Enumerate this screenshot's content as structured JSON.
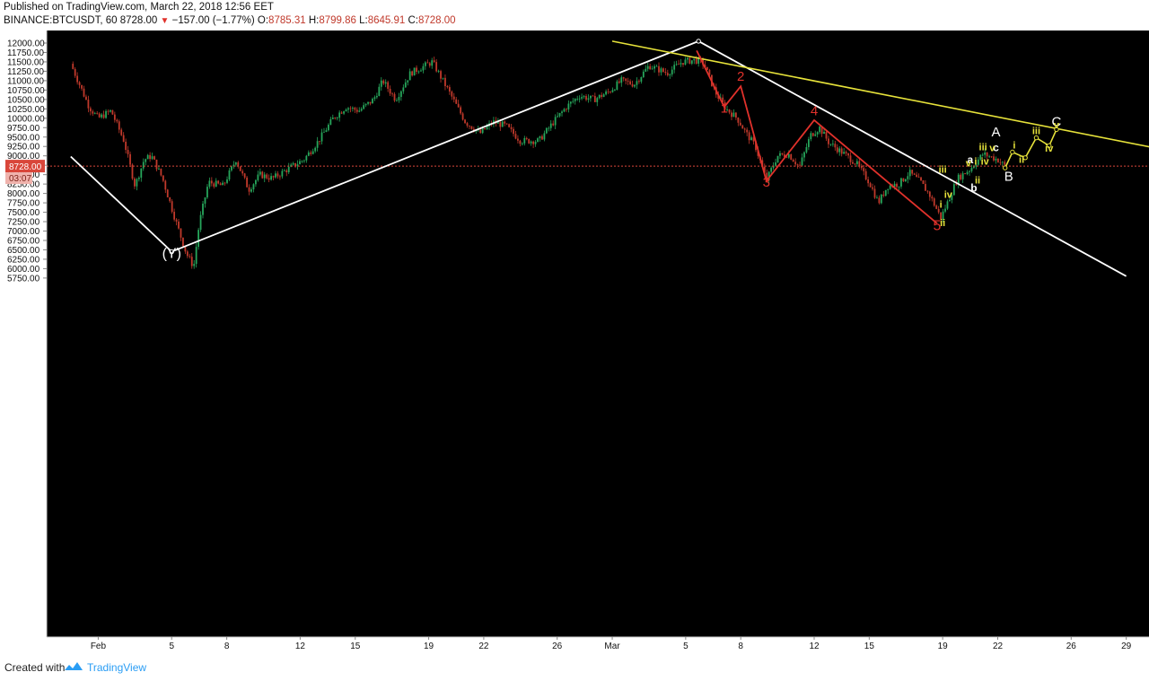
{
  "header": {
    "published": "Published on TradingView.com, March 22, 2018 12:56 EET",
    "symbol": "BINANCE:BTCUSDT, 60",
    "last": "8728.00",
    "change": "−157.00 (−1.77%)",
    "o_label": "O:",
    "o_value": "8785.31",
    "h_label": "H:",
    "h_value": "8799.86",
    "l_label": "L:",
    "l_value": "8645.91",
    "c_label": "C:",
    "c_value": "8728.00"
  },
  "footer": {
    "created_with": "Created with",
    "brand": "TradingView"
  },
  "colors": {
    "background": "#000000",
    "up": "#26a65b",
    "down": "#c0392b",
    "white_lines": "#ffffff",
    "red_wave": "#e0312b",
    "yellow": "#e6e23a",
    "price_line": "#d9463a",
    "axis_panel": "#ffffff"
  },
  "chart_data": {
    "type": "candlestick",
    "symbol": "BINANCE:BTCUSDT",
    "interval": "60",
    "ylim": [
      5700,
      12100
    ],
    "y_ticks": [
      "12000.00",
      "11750.00",
      "11500.00",
      "11250.00",
      "11000.00",
      "10750.00",
      "10500.00",
      "10250.00",
      "10000.00",
      "9750.00",
      "9500.00",
      "9250.00",
      "9000.00",
      "8750.00",
      "8500.00",
      "8250.00",
      "8000.00",
      "7750.00",
      "7500.00",
      "7250.00",
      "7000.00",
      "6750.00",
      "6500.00",
      "6250.00",
      "6000.00",
      "5750.00"
    ],
    "x_ticks": [
      {
        "label": "Feb",
        "day": 1
      },
      {
        "label": "5",
        "day": 5
      },
      {
        "label": "8",
        "day": 8
      },
      {
        "label": "12",
        "day": 12
      },
      {
        "label": "15",
        "day": 15
      },
      {
        "label": "19",
        "day": 19
      },
      {
        "label": "22",
        "day": 22
      },
      {
        "label": "26",
        "day": 26
      },
      {
        "label": "Mar",
        "day": 29
      },
      {
        "label": "5",
        "day": 33
      },
      {
        "label": "8",
        "day": 36
      },
      {
        "label": "12",
        "day": 40
      },
      {
        "label": "15",
        "day": 43
      },
      {
        "label": "19",
        "day": 47
      },
      {
        "label": "22",
        "day": 50
      },
      {
        "label": "26",
        "day": 54
      },
      {
        "label": "29",
        "day": 57
      }
    ],
    "current_price": {
      "value": 8728,
      "label": "8728.00",
      "countdown": "03:07"
    },
    "price_path": [
      [
        -0.5,
        11450
      ],
      [
        0.5,
        10300
      ],
      [
        1.0,
        10000
      ],
      [
        1.7,
        10200
      ],
      [
        2.4,
        9400
      ],
      [
        3.0,
        8200
      ],
      [
        3.5,
        8900
      ],
      [
        3.9,
        9000
      ],
      [
        4.5,
        8400
      ],
      [
        5.2,
        7300
      ],
      [
        5.8,
        6400
      ],
      [
        6.2,
        6050
      ],
      [
        6.5,
        7200
      ],
      [
        7.0,
        8300
      ],
      [
        7.8,
        8200
      ],
      [
        8.5,
        8900
      ],
      [
        9.2,
        8100
      ],
      [
        9.8,
        8500
      ],
      [
        10.5,
        8400
      ],
      [
        11.5,
        8700
      ],
      [
        12.2,
        8900
      ],
      [
        13.0,
        9400
      ],
      [
        13.8,
        10000
      ],
      [
        14.5,
        10300
      ],
      [
        15.2,
        10200
      ],
      [
        16.0,
        10500
      ],
      [
        16.5,
        11000
      ],
      [
        17.2,
        10500
      ],
      [
        18.0,
        11200
      ],
      [
        19.2,
        11500
      ],
      [
        20.0,
        10800
      ],
      [
        21.0,
        9900
      ],
      [
        21.8,
        9600
      ],
      [
        22.5,
        9900
      ],
      [
        23.2,
        9800
      ],
      [
        24.0,
        9400
      ],
      [
        25.0,
        9400
      ],
      [
        25.8,
        9900
      ],
      [
        26.5,
        10300
      ],
      [
        27.2,
        10600
      ],
      [
        28.0,
        10500
      ],
      [
        28.8,
        10700
      ],
      [
        29.5,
        11000
      ],
      [
        30.2,
        10900
      ],
      [
        31.0,
        11400
      ],
      [
        32.0,
        11200
      ],
      [
        32.8,
        11500
      ],
      [
        33.5,
        11550
      ],
      [
        34.0,
        11450
      ],
      [
        34.6,
        10700
      ],
      [
        35.2,
        10250
      ],
      [
        35.8,
        10000
      ],
      [
        36.3,
        9600
      ],
      [
        36.8,
        9250
      ],
      [
        37.4,
        8350
      ],
      [
        38.0,
        9000
      ],
      [
        38.6,
        9050
      ],
      [
        39.2,
        8700
      ],
      [
        39.8,
        9550
      ],
      [
        40.3,
        9750
      ],
      [
        40.8,
        9350
      ],
      [
        41.5,
        9100
      ],
      [
        42.3,
        8800
      ],
      [
        43.0,
        8300
      ],
      [
        43.5,
        7750
      ],
      [
        44.0,
        8200
      ],
      [
        44.6,
        8250
      ],
      [
        45.2,
        8550
      ],
      [
        45.8,
        8300
      ],
      [
        46.3,
        7950
      ],
      [
        46.9,
        7350
      ],
      [
        47.3,
        7800
      ],
      [
        47.8,
        8400
      ],
      [
        48.5,
        8650
      ],
      [
        49.2,
        9050
      ],
      [
        50.0,
        8900
      ],
      [
        50.4,
        8728
      ]
    ],
    "trendlines": [
      {
        "name": "white",
        "points": [
          [
            -0.5,
            8980
          ],
          [
            5.0,
            6450
          ],
          [
            33.7,
            12050
          ],
          [
            57.0,
            5800
          ]
        ]
      },
      {
        "name": "yellow-resistance",
        "points": [
          [
            29.0,
            12050
          ],
          [
            59.2,
            9150
          ]
        ]
      },
      {
        "name": "red-impulse",
        "points": [
          [
            33.6,
            11800
          ],
          [
            35.1,
            10300
          ],
          [
            36.0,
            10850
          ],
          [
            37.4,
            8330
          ],
          [
            40.0,
            9950
          ],
          [
            46.7,
            7200
          ]
        ]
      },
      {
        "name": "yellow-projection",
        "points": [
          [
            50.4,
            8680
          ],
          [
            50.8,
            9100
          ],
          [
            51.5,
            8950
          ],
          [
            52.1,
            9480
          ],
          [
            52.8,
            9270
          ],
          [
            53.2,
            9700
          ]
        ]
      }
    ],
    "annotations": [
      {
        "text": "(Y)",
        "day": 5.0,
        "price": 6280,
        "color": "#ffffff",
        "size": 16
      },
      {
        "text": "1",
        "day": 35.1,
        "price": 10150,
        "color": "#e0312b",
        "size": 15
      },
      {
        "text": "2",
        "day": 36.0,
        "price": 11000,
        "color": "#e0312b",
        "size": 15
      },
      {
        "text": "3",
        "day": 37.4,
        "price": 8180,
        "color": "#e0312b",
        "size": 15
      },
      {
        "text": "4",
        "day": 40.0,
        "price": 10080,
        "color": "#e0312b",
        "size": 15
      },
      {
        "text": "5",
        "day": 46.7,
        "price": 7020,
        "color": "#e0312b",
        "size": 16
      },
      {
        "text": "A",
        "day": 49.9,
        "price": 9520,
        "color": "#ffffff",
        "size": 15
      },
      {
        "text": "B",
        "day": 50.6,
        "price": 8340,
        "color": "#ffffff",
        "size": 15
      },
      {
        "text": "C",
        "day": 53.2,
        "price": 9790,
        "color": "#ffffff",
        "size": 15
      },
      {
        "text": "a",
        "day": 48.5,
        "price": 8800,
        "color": "#ffffff",
        "size": 12
      },
      {
        "text": "b",
        "day": 48.7,
        "price": 8050,
        "color": "#ffffff",
        "size": 12
      },
      {
        "text": "c",
        "day": 49.9,
        "price": 9120,
        "color": "#ffffff",
        "size": 12
      },
      {
        "text": "i",
        "day": 46.9,
        "price": 7620,
        "color": "#e6e23a",
        "size": 11
      },
      {
        "text": "ii",
        "day": 47.0,
        "price": 7130,
        "color": "#e6e23a",
        "size": 11
      },
      {
        "text": "iii",
        "day": 47.0,
        "price": 8550,
        "color": "#e6e23a",
        "size": 11
      },
      {
        "text": "iv",
        "day": 47.3,
        "price": 7880,
        "color": "#e6e23a",
        "size": 11
      },
      {
        "text": "v",
        "day": 48.4,
        "price": 8720,
        "color": "#e6e23a",
        "size": 11
      },
      {
        "text": "i",
        "day": 48.8,
        "price": 8770,
        "color": "#e6e23a",
        "size": 11
      },
      {
        "text": "ii",
        "day": 48.9,
        "price": 8270,
        "color": "#e6e23a",
        "size": 11
      },
      {
        "text": "iii",
        "day": 49.2,
        "price": 9150,
        "color": "#e6e23a",
        "size": 11
      },
      {
        "text": "iv",
        "day": 49.3,
        "price": 8770,
        "color": "#e6e23a",
        "size": 11
      },
      {
        "text": "v",
        "day": 49.7,
        "price": 9120,
        "color": "#e6e23a",
        "size": 11
      },
      {
        "text": "i",
        "day": 50.9,
        "price": 9200,
        "color": "#e6e23a",
        "size": 11
      },
      {
        "text": "ii",
        "day": 51.3,
        "price": 8810,
        "color": "#e6e23a",
        "size": 11
      },
      {
        "text": "iii",
        "day": 52.1,
        "price": 9580,
        "color": "#e6e23a",
        "size": 11
      },
      {
        "text": "iv",
        "day": 52.8,
        "price": 9110,
        "color": "#e6e23a",
        "size": 11
      },
      {
        "text": "v",
        "day": 53.2,
        "price": 9730,
        "color": "#e6e23a",
        "size": 11
      }
    ]
  }
}
